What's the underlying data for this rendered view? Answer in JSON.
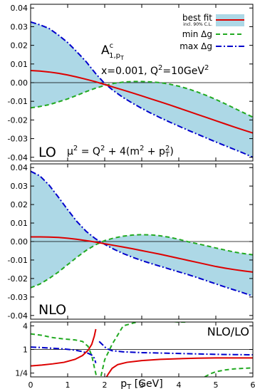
{
  "chart_data": [
    {
      "type": "line",
      "panel": "top",
      "xlim": [
        0,
        6
      ],
      "ylim": [
        -0.042,
        0.042
      ],
      "yticks": [
        "0.04",
        "0.03",
        "0.02",
        "0.01",
        "0.00",
        "-0.01",
        "-0.02",
        "-0.03",
        "-0.04"
      ],
      "ytick_values": [
        0.04,
        0.03,
        0.02,
        0.01,
        0.0,
        -0.01,
        -0.02,
        -0.03,
        -0.04
      ],
      "title_main": "A",
      "title_sup": "c",
      "title_sub": "1,p",
      "title_subsub": "T",
      "kinematics": "x=0.001, Q",
      "kinematics_sup": "2",
      "kinematics_rest": "=10GeV",
      "kinematics_sup2": "2",
      "order_label": "LO",
      "scale_label": "μ",
      "scale_sup": "2",
      "scale_mid": " = Q",
      "scale_sup2": "2",
      "scale_mid2": " + 4(m",
      "scale_sup3": "2",
      "scale_mid3": " + p",
      "scale_sub": "T",
      "scale_sup4": "2",
      "scale_end": ")",
      "legend_position": "top-right",
      "x": [
        0,
        0.25,
        0.5,
        0.75,
        1,
        1.25,
        1.5,
        1.75,
        2,
        2.25,
        2.5,
        2.75,
        3,
        3.25,
        3.5,
        3.75,
        4,
        4.25,
        4.5,
        4.75,
        5,
        5.25,
        5.5,
        5.75,
        6
      ],
      "series": [
        {
          "name": "best fit",
          "legend_note": "incl. 90% C.L.",
          "style": "solid",
          "color": "#dd0000",
          "values": [
            0.0065,
            0.0062,
            0.0057,
            0.005,
            0.0041,
            0.003,
            0.0018,
            0.0005,
            -0.001,
            -0.0025,
            -0.004,
            -0.0055,
            -0.0071,
            -0.0087,
            -0.0103,
            -0.0119,
            -0.0136,
            -0.0153,
            -0.017,
            -0.0187,
            -0.0204,
            -0.0221,
            -0.0238,
            -0.0254,
            -0.027
          ]
        },
        {
          "name": "min Δg",
          "style": "dashed",
          "color": "#22aa22",
          "values": [
            -0.0135,
            -0.0128,
            -0.0118,
            -0.0103,
            -0.0087,
            -0.0068,
            -0.0048,
            -0.003,
            -0.0015,
            -0.0004,
            0.0003,
            0.0006,
            0.0006,
            0.0004,
            0.0,
            -0.0008,
            -0.0019,
            -0.0033,
            -0.005,
            -0.0069,
            -0.009,
            -0.0113,
            -0.0137,
            -0.0161,
            -0.0185
          ]
        },
        {
          "name": "max Δg",
          "style": "dashdot",
          "color": "#0000cc",
          "values": [
            0.0325,
            0.031,
            0.029,
            0.0255,
            0.0215,
            0.0165,
            0.0112,
            0.005,
            -0.0005,
            -0.0045,
            -0.008,
            -0.011,
            -0.0138,
            -0.0164,
            -0.0188,
            -0.0211,
            -0.0233,
            -0.0255,
            -0.0276,
            -0.0297,
            -0.0318,
            -0.0338,
            -0.0358,
            -0.0378,
            -0.04
          ]
        }
      ]
    },
    {
      "type": "line",
      "panel": "middle",
      "xlim": [
        0,
        6
      ],
      "ylim": [
        -0.042,
        0.042
      ],
      "yticks": [
        "0.04",
        "0.03",
        "0.02",
        "0.01",
        "0.00",
        "-0.01",
        "-0.02",
        "-0.03",
        "-0.04"
      ],
      "ytick_values": [
        0.04,
        0.03,
        0.02,
        0.01,
        0.0,
        -0.01,
        -0.02,
        -0.03,
        -0.04
      ],
      "order_label": "NLO",
      "x": [
        0,
        0.25,
        0.5,
        0.75,
        1,
        1.25,
        1.5,
        1.75,
        2,
        2.25,
        2.5,
        2.75,
        3,
        3.25,
        3.5,
        3.75,
        4,
        4.25,
        4.5,
        4.75,
        5,
        5.25,
        5.5,
        5.75,
        6
      ],
      "series": [
        {
          "name": "best fit",
          "style": "solid",
          "color": "#dd0000",
          "values": [
            0.0025,
            0.0025,
            0.0024,
            0.0022,
            0.0018,
            0.0012,
            0.0005,
            -0.0003,
            -0.0012,
            -0.0021,
            -0.003,
            -0.0039,
            -0.0049,
            -0.0059,
            -0.0069,
            -0.008,
            -0.0091,
            -0.0102,
            -0.0113,
            -0.0124,
            -0.0135,
            -0.0144,
            -0.0152,
            -0.0159,
            -0.0165
          ]
        },
        {
          "name": "min Δg",
          "style": "dashed",
          "color": "#22aa22",
          "values": [
            -0.025,
            -0.023,
            -0.02,
            -0.0165,
            -0.0125,
            -0.0085,
            -0.0048,
            -0.0018,
            0.0005,
            0.0019,
            0.0029,
            0.0035,
            0.0037,
            0.0036,
            0.0031,
            0.0023,
            0.0012,
            -0.0001,
            -0.0012,
            -0.0023,
            -0.0035,
            -0.0046,
            -0.0057,
            -0.0065,
            -0.0072
          ]
        },
        {
          "name": "max Δg",
          "style": "dashdot",
          "color": "#0000cc",
          "values": [
            0.038,
            0.0355,
            0.0305,
            0.024,
            0.0172,
            0.0108,
            0.0055,
            0.0015,
            -0.0015,
            -0.0042,
            -0.0065,
            -0.0085,
            -0.0103,
            -0.0119,
            -0.0134,
            -0.0149,
            -0.0164,
            -0.0179,
            -0.0195,
            -0.0212,
            -0.0229,
            -0.0246,
            -0.0262,
            -0.0278,
            -0.0295
          ]
        }
      ]
    },
    {
      "type": "line",
      "panel": "bottom",
      "ratio_label": "NLO/LO",
      "xlim": [
        0,
        6
      ],
      "yscale": "log",
      "ylim": [
        0.2,
        5
      ],
      "yticks": [
        "4",
        "1",
        "1/4"
      ],
      "ytick_values": [
        4,
        1,
        0.25
      ],
      "xticks": [
        "0",
        "1",
        "2",
        "3",
        "4",
        "5",
        "6"
      ],
      "xtick_values": [
        0,
        1,
        2,
        3,
        4,
        5,
        6
      ],
      "xlabel_main": "p",
      "xlabel_sub": "T",
      "xlabel_unit": " [GeV]",
      "series": [
        {
          "name": "best fit",
          "style": "solid",
          "color": "#dd0000",
          "segments": [
            {
              "x": [
                0,
                0.3,
                0.6,
                0.9,
                1.2,
                1.4,
                1.55,
                1.65,
                1.72,
                1.76
              ],
              "y": [
                0.38,
                0.4,
                0.43,
                0.47,
                0.56,
                0.7,
                0.95,
                1.35,
                2.2,
                3.3
              ]
            },
            {
              "x": [
                2.05,
                2.1,
                2.2,
                2.35,
                2.6,
                3.0,
                3.5,
                4.0,
                4.5,
                5.0,
                5.5,
                6.0
              ],
              "y": [
                0.2,
                0.24,
                0.33,
                0.41,
                0.47,
                0.52,
                0.56,
                0.58,
                0.6,
                0.61,
                0.61,
                0.61
              ]
            }
          ]
        },
        {
          "name": "min Δg",
          "style": "dashed",
          "color": "#22aa22",
          "segments": [
            {
              "x": [
                0,
                0.3,
                0.6,
                0.9,
                1.2,
                1.4,
                1.55,
                1.65,
                1.72,
                1.78
              ],
              "y": [
                2.5,
                2.3,
                2.0,
                1.85,
                1.75,
                1.6,
                1.2,
                0.7,
                0.35,
                0.2
              ]
            },
            {
              "x": [
                1.9,
                2.0,
                2.2,
                2.5,
                3.0,
                3.5,
                4.0,
                4.25
              ],
              "y": [
                0.21,
                0.55,
                1.35,
                4.0,
                5.4,
                5.4,
                5.0,
                5.0
              ]
            },
            {
              "x": [
                4.7,
                4.85,
                5.0,
                5.25,
                5.5,
                5.75,
                6.0
              ],
              "y": [
                0.2,
                0.24,
                0.27,
                0.3,
                0.32,
                0.33,
                0.34
              ]
            }
          ]
        },
        {
          "name": "max Δg",
          "style": "dashdot",
          "color": "#0000cc",
          "segments": [
            {
              "x": [
                0,
                0.3,
                0.6,
                0.9,
                1.2,
                1.4,
                1.55,
                1.65,
                1.72,
                1.76
              ],
              "y": [
                1.15,
                1.12,
                1.07,
                1.03,
                0.96,
                0.88,
                0.8,
                0.72,
                0.6,
                0.45
              ]
            },
            {
              "x": [
                1.85,
                1.95,
                2.05,
                2.2,
                2.5,
                3.0,
                3.5,
                4.0,
                4.5,
                5.0,
                5.5,
                6.0
              ],
              "y": [
                1.6,
                1.3,
                1.05,
                0.93,
                0.87,
                0.83,
                0.81,
                0.79,
                0.77,
                0.75,
                0.74,
                0.73
              ]
            }
          ]
        }
      ]
    }
  ]
}
